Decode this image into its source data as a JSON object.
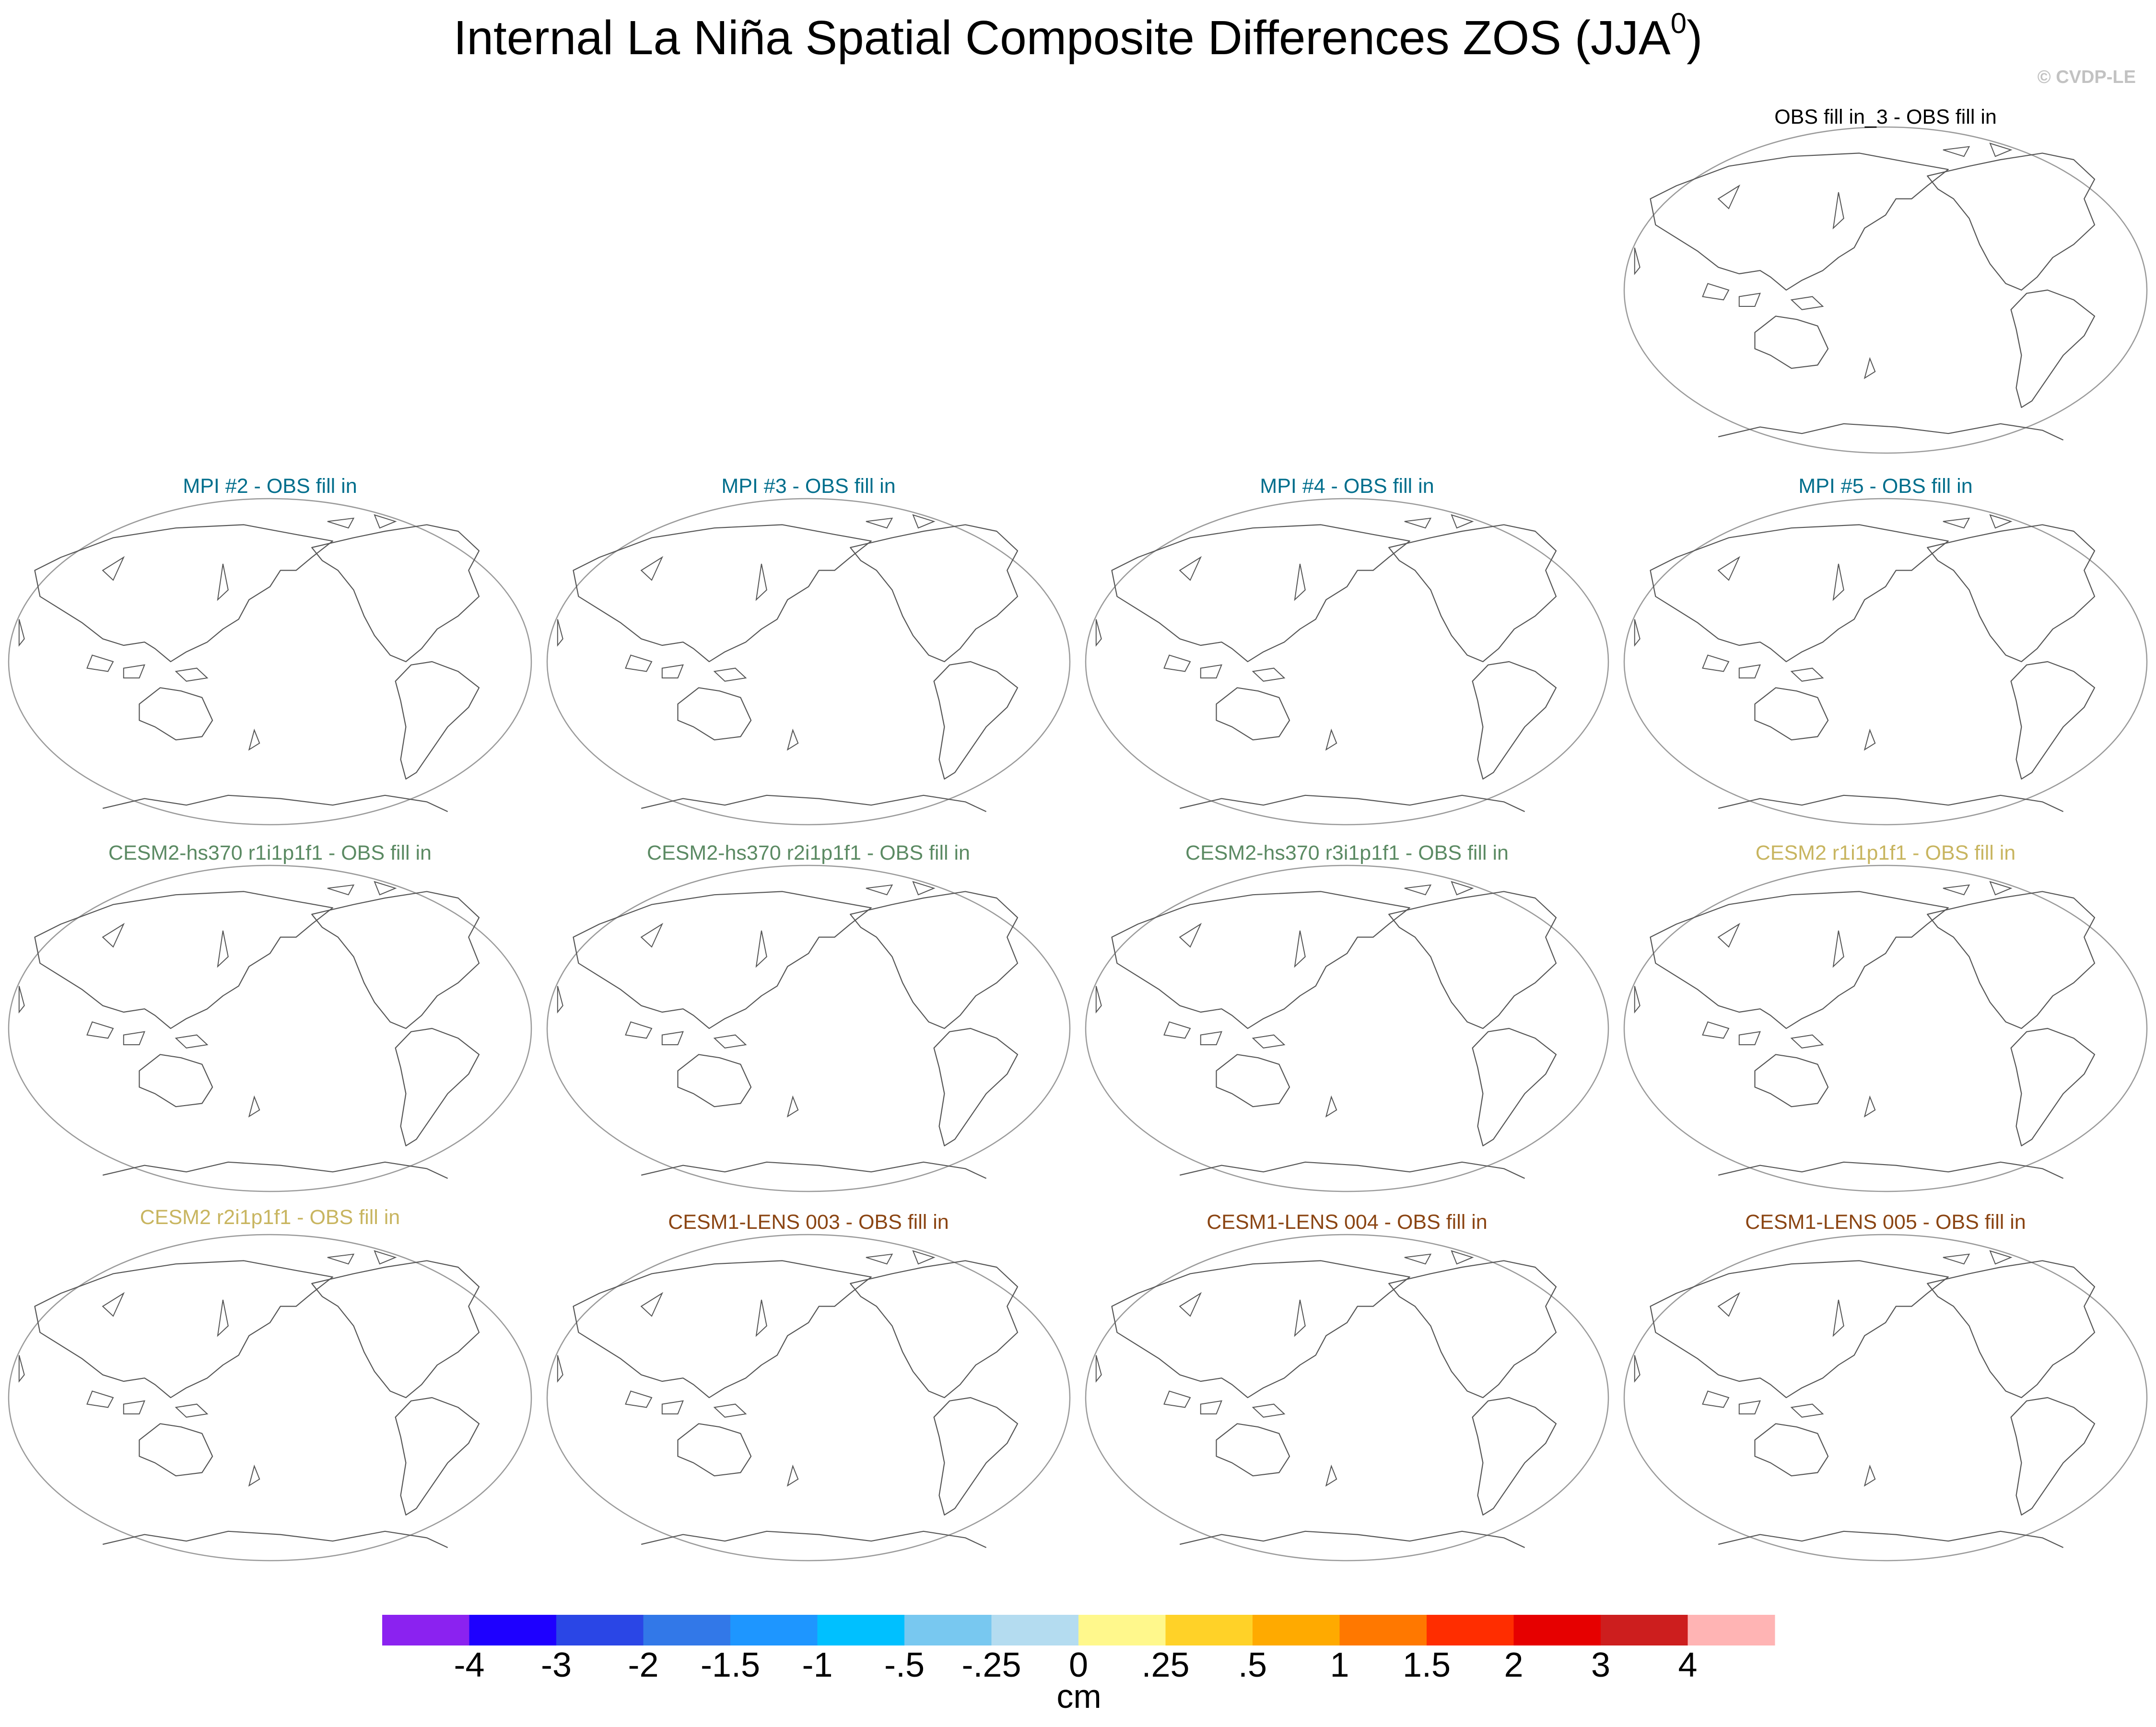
{
  "chart_data": {
    "type": "map-panels",
    "title": "Internal La Niña Spatial Composite Differences ZOS (JJA",
    "title_superscript": "0",
    "title_suffix": ")",
    "watermark": "© CVDP-LE",
    "projection": "Robinson, Pacific-centred (land outlines only)",
    "panels": [
      {
        "title": "OBS fill in_3 - OBS fill in",
        "color": "#000000"
      },
      {
        "title": "MPI #2 - OBS fill in",
        "color": "#006e8c"
      },
      {
        "title": "MPI #3 - OBS fill in",
        "color": "#006e8c"
      },
      {
        "title": "MPI #4 - OBS fill in",
        "color": "#006e8c"
      },
      {
        "title": "MPI #5 - OBS fill in",
        "color": "#006e8c"
      },
      {
        "title": "CESM2-hs370 r1i1p1f1 - OBS fill in",
        "color": "#5b8a63"
      },
      {
        "title": "CESM2-hs370 r2i1p1f1 - OBS fill in",
        "color": "#5b8a63"
      },
      {
        "title": "CESM2-hs370 r3i1p1f1 - OBS fill in",
        "color": "#5b8a63"
      },
      {
        "title": "CESM2 r1i1p1f1 - OBS fill in",
        "color": "#c8b560"
      },
      {
        "title": "CESM2 r2i1p1f1 - OBS fill in",
        "color": "#c8b560"
      },
      {
        "title": "CESM1-LENS 003 - OBS fill in",
        "color": "#8b4513"
      },
      {
        "title": "CESM1-LENS 004 - OBS fill in",
        "color": "#8b4513"
      },
      {
        "title": "CESM1-LENS 005 - OBS fill in",
        "color": "#8b4513"
      }
    ],
    "colorbar": {
      "units": "cm",
      "labels": [
        "-4",
        "-3",
        "-2",
        "-1.5",
        "-1",
        "-.5",
        "-.25",
        "0",
        ".25",
        ".5",
        "1",
        "1.5",
        "2",
        "3",
        "4"
      ],
      "colors": [
        "#8b22f0",
        "#1e00ff",
        "#2a46e6",
        "#3278e8",
        "#1e96ff",
        "#00c0ff",
        "#78c8f0",
        "#b4dcf0",
        "#fff88c",
        "#ffd228",
        "#ffaa00",
        "#ff7800",
        "#ff2d00",
        "#e60000",
        "#cd1e1e",
        "#ffb4b4"
      ]
    }
  }
}
